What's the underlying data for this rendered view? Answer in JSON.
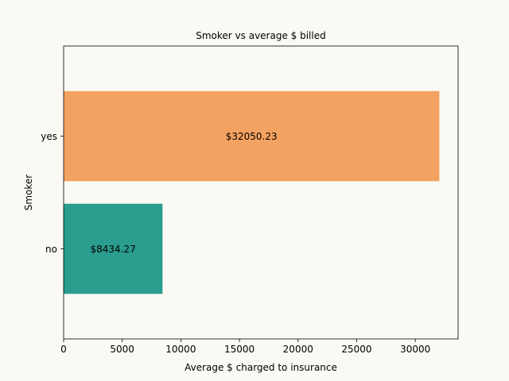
{
  "chart_data": {
    "type": "bar",
    "orientation": "horizontal",
    "title": "Smoker vs average $ billed",
    "xlabel": "Average $ charged to insurance",
    "ylabel": "Smoker",
    "categories": [
      "no",
      "yes"
    ],
    "values": [
      8434.27,
      32050.23
    ],
    "data_labels": [
      "$8434.27",
      "$32050.23"
    ],
    "colors": [
      "#2a9d8f",
      "#f4a261"
    ],
    "xlim": [
      0,
      33652.7
    ],
    "xticks": [
      0,
      5000,
      10000,
      15000,
      20000,
      25000,
      30000
    ],
    "xtick_labels": [
      "0",
      "5000",
      "10000",
      "15000",
      "20000",
      "25000",
      "30000"
    ],
    "grid": false,
    "background": "#faf9f4"
  }
}
